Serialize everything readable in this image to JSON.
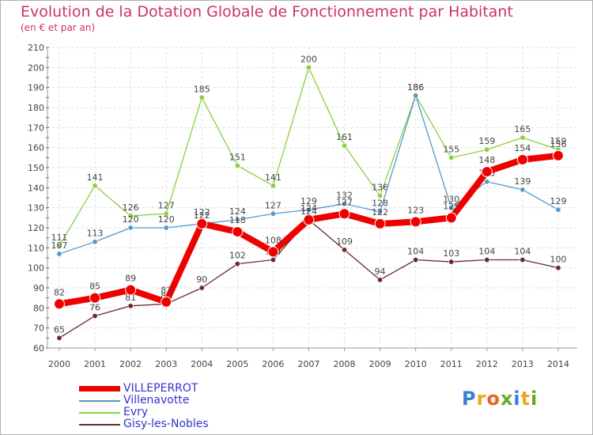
{
  "title": "Evolution de la Dotation Globale de Fonctionnement par Habitant",
  "subtitle": "(en € et par an)",
  "logo": {
    "text": "Proxiti",
    "colors": [
      "#3a7fd5",
      "#e8a91c",
      "#f06020",
      "#6aa830",
      "#3a7fd5",
      "#e8a91c",
      "#6aa830"
    ]
  },
  "chart_data": {
    "type": "line",
    "x": [
      2000,
      2001,
      2002,
      2003,
      2004,
      2005,
      2006,
      2007,
      2008,
      2009,
      2010,
      2011,
      2012,
      2013,
      2014
    ],
    "ylim": [
      60,
      210
    ],
    "yticks": [
      60,
      70,
      80,
      90,
      100,
      110,
      120,
      130,
      140,
      150,
      160,
      170,
      180,
      190,
      200,
      210
    ],
    "grid": true,
    "legend_position": "bottom-left",
    "series": [
      {
        "name": "Evry",
        "color": "#88d040",
        "values": [
          111,
          141,
          126,
          127,
          185,
          151,
          141,
          200,
          161,
          136,
          186,
          155,
          159,
          165,
          159
        ],
        "labels": [
          "111",
          "141",
          "126",
          "127",
          "185",
          "151",
          "141",
          "200",
          "161",
          "136",
          "186",
          "155",
          "159",
          "165",
          "159"
        ]
      },
      {
        "name": "Villenavotte",
        "color": "#5599cc",
        "values": [
          107,
          113,
          120,
          120,
          122,
          124,
          127,
          129,
          132,
          128,
          186,
          130,
          143,
          139,
          129
        ],
        "labels": [
          "107",
          "113",
          "120",
          "120",
          "122",
          "124",
          "127",
          "129",
          "132",
          "128",
          "186",
          "130",
          "143",
          "139",
          "129"
        ]
      },
      {
        "name": "Gisy-les-Nobles",
        "color": "#6b2a2a",
        "values": [
          65,
          76,
          81,
          82,
          90,
          102,
          104,
          124,
          109,
          94,
          104,
          103,
          104,
          104,
          100
        ],
        "labels": [
          "65",
          "76",
          "81",
          "82",
          "90",
          "102",
          "104",
          "124",
          "109",
          "94",
          "104",
          "103",
          "104",
          "104",
          "100"
        ]
      },
      {
        "name": "VILLEPERROT",
        "color": "#ee0000",
        "values": [
          82,
          85,
          89,
          83,
          122,
          118,
          108,
          124,
          127,
          122,
          123,
          125,
          148,
          154,
          156
        ],
        "labels": [
          "82",
          "85",
          "89",
          "83",
          "122",
          "118",
          "108",
          "124",
          "127",
          "122",
          "123",
          "125",
          "148",
          "154",
          "156"
        ]
      }
    ],
    "legend": [
      "VILLEPERROT",
      "Villenavotte",
      "Evry",
      "Gisy-les-Nobles"
    ]
  }
}
